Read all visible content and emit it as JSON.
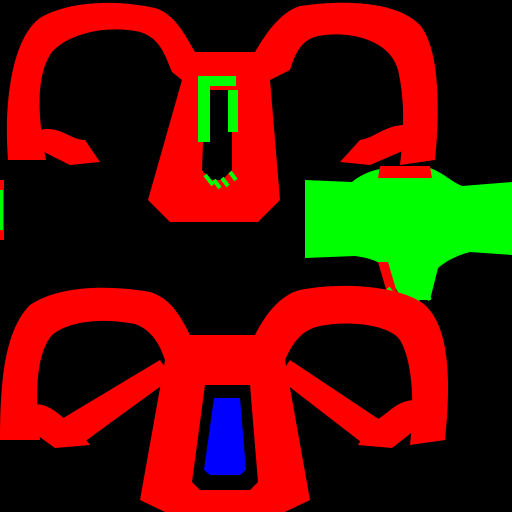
{
  "colors": {
    "background": "#000000",
    "primary_region": "#ff0000",
    "secondary_region": "#00ff00",
    "tertiary_region": "#0000ff"
  },
  "icons": {
    "upper_part": "mask-top-shape",
    "lower_part": "mask-bottom-shape",
    "side_part": "green-side-shape"
  }
}
